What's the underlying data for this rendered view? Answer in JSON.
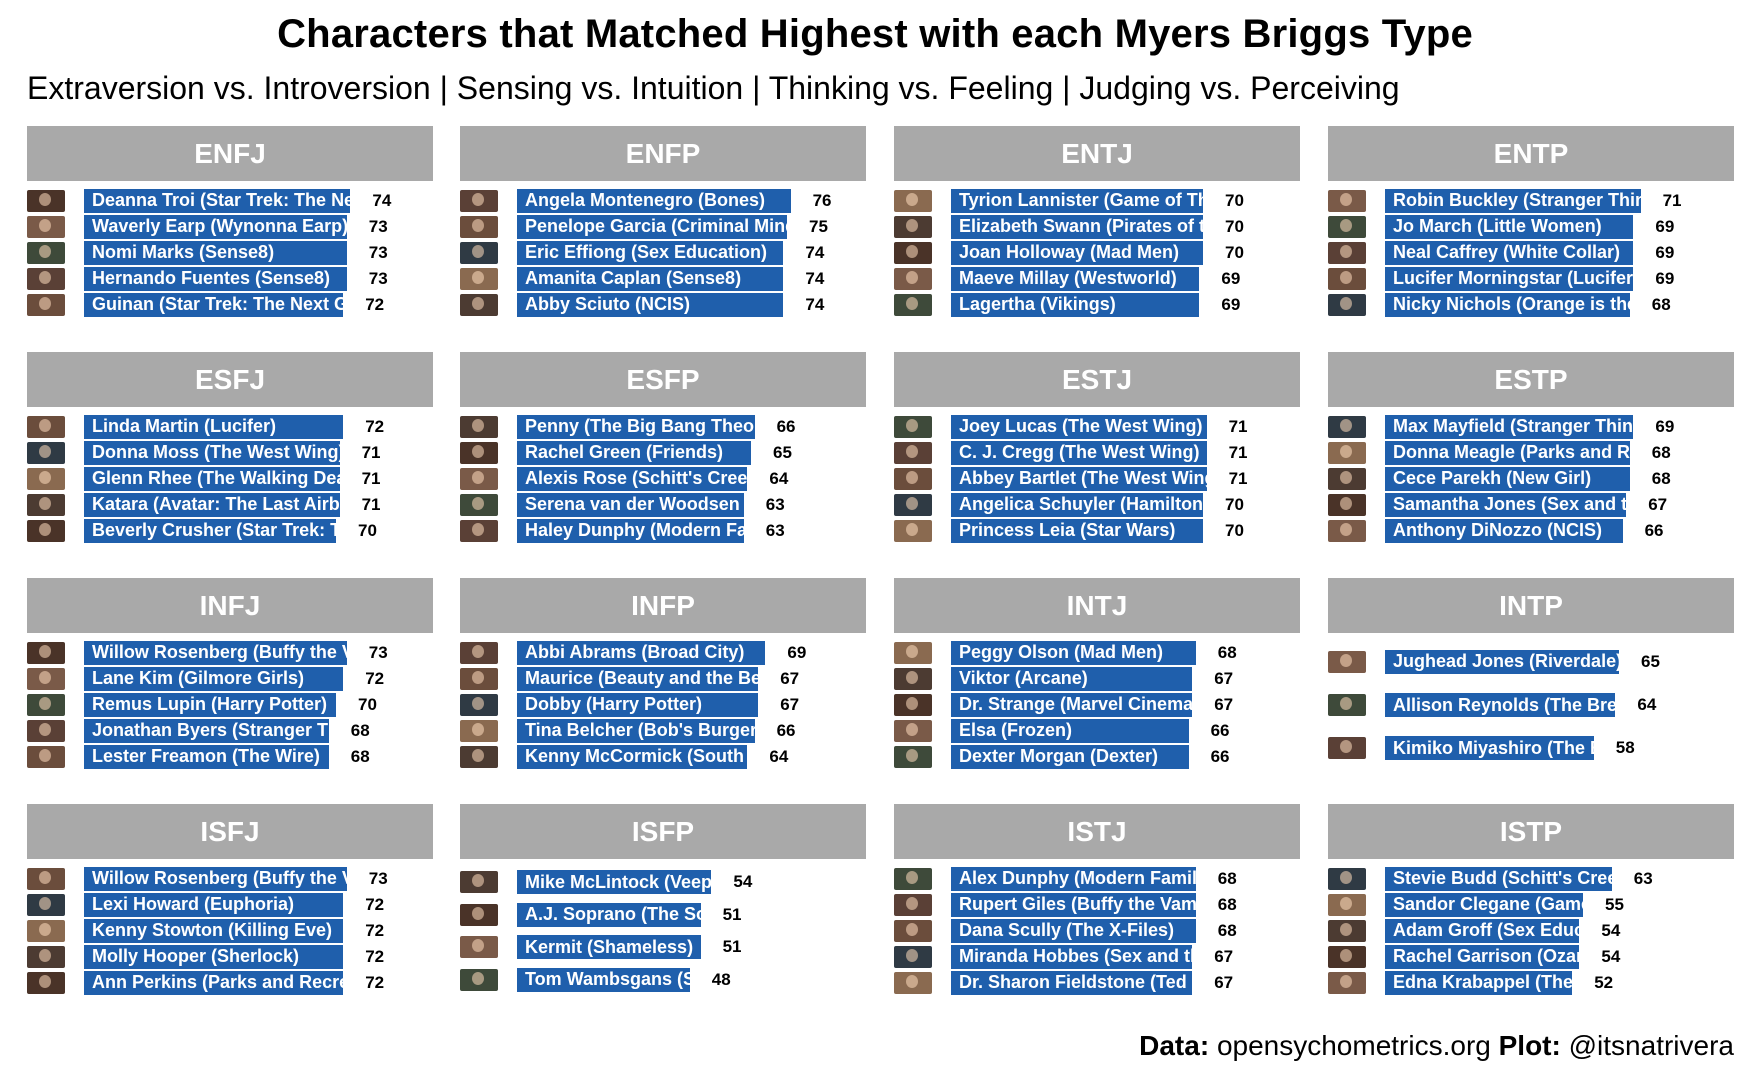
{
  "title": "Characters that Matched Highest with each Myers Briggs Type",
  "subtitle": "Extraversion vs. Introversion | Sensing vs. Intuition | Thinking vs. Feeling | Judging vs. Perceiving",
  "footer": {
    "data_label": "Data:",
    "data_source": "opensychometrics.org",
    "plot_label": "Plot:",
    "plot_author": "@itsnatrivera"
  },
  "colors": {
    "bar": "#1f5fac",
    "header": "#a9a9a9",
    "bar_text": "#ffffff"
  },
  "chart_data": [
    {
      "type": "bar",
      "title": "ENFJ",
      "categories": [
        "Deanna Troi (Star Trek: The Ne",
        "Waverly Earp (Wynonna Earp)",
        "Nomi Marks (Sense8)",
        "Hernando Fuentes (Sense8)",
        "Guinan (Star Trek: The Next G"
      ],
      "values": [
        74,
        73,
        73,
        73,
        72
      ]
    },
    {
      "type": "bar",
      "title": "ENFP",
      "categories": [
        "Angela Montenegro (Bones)",
        "Penelope Garcia (Criminal Mind",
        "Eric Effiong (Sex Education)",
        "Amanita Caplan (Sense8)",
        "Abby Sciuto (NCIS)"
      ],
      "values": [
        76,
        75,
        74,
        74,
        74
      ]
    },
    {
      "type": "bar",
      "title": "ENTJ",
      "categories": [
        "Tyrion Lannister (Game of Th",
        "Elizabeth Swann (Pirates of t",
        "Joan Holloway (Mad Men)",
        "Maeve Millay (Westworld)",
        "Lagertha (Vikings)"
      ],
      "values": [
        70,
        70,
        70,
        69,
        69
      ]
    },
    {
      "type": "bar",
      "title": "ENTP",
      "categories": [
        "Robin Buckley (Stranger Thin",
        "Jo March (Little Women)",
        "Neal Caffrey (White Collar)",
        "Lucifer Morningstar (Lucifer)",
        "Nicky Nichols (Orange is the"
      ],
      "values": [
        71,
        69,
        69,
        69,
        68
      ]
    },
    {
      "type": "bar",
      "title": "ESFJ",
      "categories": [
        "Linda Martin (Lucifer)",
        "Donna Moss (The West Wing)",
        "Glenn Rhee (The Walking Dea",
        "Katara (Avatar: The Last Airbe",
        "Beverly Crusher (Star Trek: T"
      ],
      "values": [
        72,
        71,
        71,
        71,
        70
      ]
    },
    {
      "type": "bar",
      "title": "ESFP",
      "categories": [
        "Penny (The Big Bang Theor",
        "Rachel Green (Friends)",
        "Alexis Rose (Schitt's Creek",
        "Serena van der Woodsen (",
        "Haley Dunphy (Modern Fa"
      ],
      "values": [
        66,
        65,
        64,
        63,
        63
      ]
    },
    {
      "type": "bar",
      "title": "ESTJ",
      "categories": [
        "Joey Lucas (The West Wing)",
        "C. J. Cregg (The West Wing)",
        "Abbey Bartlet (The West Wing",
        "Angelica Schuyler (Hamilton)",
        "Princess Leia (Star Wars)"
      ],
      "values": [
        71,
        71,
        71,
        70,
        70
      ]
    },
    {
      "type": "bar",
      "title": "ESTP",
      "categories": [
        "Max Mayfield (Stranger Thing",
        "Donna Meagle (Parks and Re",
        "Cece Parekh (New Girl)",
        "Samantha Jones (Sex and th",
        "Anthony DiNozzo (NCIS)"
      ],
      "values": [
        69,
        68,
        68,
        67,
        66
      ]
    },
    {
      "type": "bar",
      "title": "INFJ",
      "categories": [
        "Willow Rosenberg (Buffy the V",
        "Lane Kim (Gilmore Girls)",
        "Remus Lupin (Harry Potter)",
        "Jonathan Byers (Stranger Th",
        "Lester Freamon (The Wire)"
      ],
      "values": [
        73,
        72,
        70,
        68,
        68
      ]
    },
    {
      "type": "bar",
      "title": "INFP",
      "categories": [
        "Abbi Abrams (Broad City)",
        "Maurice (Beauty and the Be",
        "Dobby (Harry Potter)",
        "Tina Belcher (Bob's Burgers",
        "Kenny McCormick (South"
      ],
      "values": [
        69,
        67,
        67,
        66,
        64
      ]
    },
    {
      "type": "bar",
      "title": "INTJ",
      "categories": [
        "Peggy Olson (Mad Men)",
        "Viktor (Arcane)",
        "Dr. Strange (Marvel Cinemat",
        "Elsa (Frozen)",
        "Dexter Morgan (Dexter)"
      ],
      "values": [
        68,
        67,
        67,
        66,
        66
      ]
    },
    {
      "type": "bar",
      "title": "INTP",
      "categories": [
        "Jughead Jones (Riverdale)",
        "Allison Reynolds (The Brea",
        "Kimiko Miyashiro (The B"
      ],
      "values": [
        65,
        64,
        58
      ]
    },
    {
      "type": "bar",
      "title": "ISFJ",
      "categories": [
        "Willow Rosenberg (Buffy the V",
        "Lexi Howard (Euphoria)",
        "Kenny Stowton (Killing Eve)",
        "Molly Hooper (Sherlock)",
        "Ann Perkins (Parks and Recre"
      ],
      "values": [
        73,
        72,
        72,
        72,
        72
      ]
    },
    {
      "type": "bar",
      "title": "ISFP",
      "categories": [
        "Mike McLintock (Veep",
        "A.J. Soprano (The So",
        "Kermit (Shameless)",
        "Tom Wambsgans (S"
      ],
      "values": [
        54,
        51,
        51,
        48
      ]
    },
    {
      "type": "bar",
      "title": "ISTJ",
      "categories": [
        "Alex Dunphy (Modern Family",
        "Rupert Giles (Buffy the Vam",
        "Dana Scully (The X-Files)",
        "Miranda Hobbes (Sex and th",
        "Dr. Sharon Fieldstone (Ted L"
      ],
      "values": [
        68,
        68,
        68,
        67,
        67
      ]
    },
    {
      "type": "bar",
      "title": "ISTP",
      "categories": [
        "Stevie Budd (Schitt's Cree",
        "Sandor Clegane (Game",
        "Adam Groff (Sex Educ",
        "Rachel Garrison (Ozar",
        "Edna Krabappel (The"
      ],
      "values": [
        63,
        55,
        54,
        54,
        52
      ]
    }
  ]
}
